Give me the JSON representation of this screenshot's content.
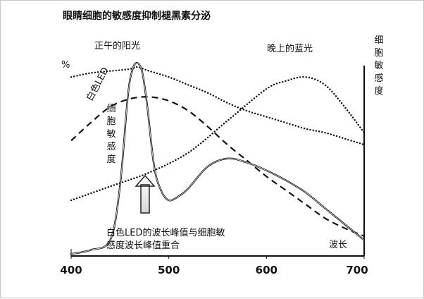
{
  "chart_data": {
    "type": "line",
    "title": "眼睛细胞的敏感度抑制褪黑素分泌",
    "x_ticks": [
      "400",
      "500",
      "600",
      "700"
    ],
    "xlim": [
      400,
      700
    ],
    "ylim": [
      0,
      100
    ],
    "y_axis_left_label": "%",
    "y_axis_right_label": "细胞敏感度",
    "annotations": {
      "sunlight": "正午的阳光",
      "blue_evening": "晚上的蓝光",
      "white_led": "白色LED",
      "cell_sensitivity": "细胞敏感度",
      "note": "白色LED的波长峰值与细胞敏感度波长峰值重合",
      "note_line1": "白色LED的波长峰值与细胞敏",
      "note_line2": "感度波长峰值重合",
      "wavelength": "波长"
    },
    "series": [
      {
        "name": "正午的阳光",
        "style": "dotted",
        "x": [
          400,
          420,
          440,
          460,
          468,
          480,
          500,
          520,
          540,
          560,
          580,
          600,
          620,
          640,
          660,
          680,
          700
        ],
        "y": [
          90,
          92,
          93,
          94,
          95,
          93,
          90,
          86,
          82,
          77,
          73,
          70,
          67,
          64,
          62,
          59,
          56
        ]
      },
      {
        "name": "白色LED",
        "style": "solid",
        "x": [
          400,
          420,
          440,
          450,
          458,
          463,
          468,
          473,
          478,
          485,
          492,
          500,
          510,
          520,
          540,
          560,
          580,
          600,
          620,
          640,
          660,
          680,
          700
        ],
        "y": [
          1,
          3,
          8,
          35,
          80,
          94,
          97,
          92,
          75,
          45,
          33,
          28,
          30,
          34,
          45,
          49,
          47,
          43,
          38,
          32,
          24,
          16,
          8
        ]
      },
      {
        "name": "细胞敏感度",
        "style": "dashed",
        "x": [
          400,
          420,
          440,
          460,
          480,
          500,
          520,
          540,
          560,
          580,
          600,
          620,
          640,
          660,
          680,
          700
        ],
        "y": [
          58,
          67,
          75,
          79,
          80,
          78,
          73,
          65,
          56,
          48,
          40,
          33,
          26,
          19,
          14,
          10
        ]
      },
      {
        "name": "晚上的蓝光",
        "style": "dotted",
        "x": [
          400,
          440,
          480,
          520,
          560,
          600,
          620,
          640,
          660,
          680,
          700
        ],
        "y": [
          28,
          35,
          42,
          52,
          68,
          84,
          88,
          90,
          86,
          75,
          62
        ]
      }
    ]
  }
}
